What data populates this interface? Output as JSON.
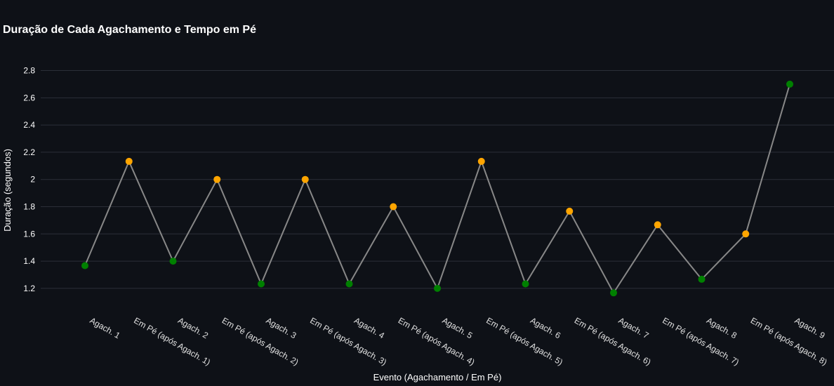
{
  "title": "Duração de Cada Agachamento e Tempo em Pé",
  "chart_data": {
    "type": "line",
    "title": "Duração de Cada Agachamento e Tempo em Pé",
    "xlabel": "Evento (Agachamento / Em Pé)",
    "ylabel": "Duração (segundos)",
    "ylim": [
      1.05,
      2.88
    ],
    "yticks": [
      "1.2",
      "1.4",
      "1.6",
      "1.8",
      "2",
      "2.2",
      "2.4",
      "2.6",
      "2.8"
    ],
    "grid": true,
    "legend": "none",
    "line_color": "#888888",
    "categories": [
      "Agach. 1",
      "Em Pé (após Agach. 1)",
      "Agach. 2",
      "Em Pé (após Agach. 2)",
      "Agach. 3",
      "Em Pé (após Agach. 3)",
      "Agach. 4",
      "Em Pé (após Agach. 4)",
      "Agach. 5",
      "Em Pé (após Agach. 5)",
      "Agach. 6",
      "Em Pé (após Agach. 6)",
      "Agach. 7",
      "Em Pé (após Agach. 7)",
      "Agach. 8",
      "Em Pé (após Agach. 8)",
      "Agach. 9"
    ],
    "values": [
      1.367,
      2.133,
      1.4,
      2.0,
      1.233,
      2.0,
      1.233,
      1.8,
      1.2,
      2.133,
      1.233,
      1.767,
      1.167,
      1.667,
      1.267,
      1.6,
      2.7
    ],
    "marker_colors": [
      "#008000",
      "#ffa500",
      "#008000",
      "#ffa500",
      "#008000",
      "#ffa500",
      "#008000",
      "#ffa500",
      "#008000",
      "#ffa500",
      "#008000",
      "#ffa500",
      "#008000",
      "#ffa500",
      "#008000",
      "#ffa500",
      "#008000"
    ]
  }
}
